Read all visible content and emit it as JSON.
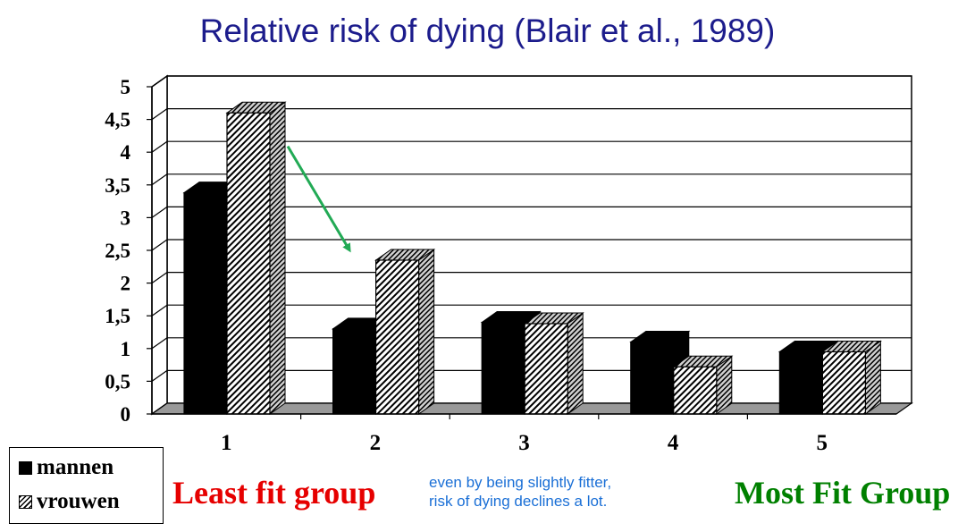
{
  "title": "Relative risk of dying  (Blair et al., 1989)",
  "chart_data": {
    "type": "bar",
    "categories": [
      "1",
      "2",
      "3",
      "4",
      "5"
    ],
    "series": [
      {
        "name": "mannen",
        "values": [
          3.38,
          1.3,
          1.4,
          1.1,
          0.95
        ],
        "color": "#000000",
        "pattern": "solid"
      },
      {
        "name": "vrouwen",
        "values": [
          4.6,
          2.35,
          1.38,
          0.72,
          0.95
        ],
        "color": "#000000",
        "pattern": "diagonal-hatch"
      }
    ],
    "yticks": [
      "0",
      "0,5",
      "1",
      "1,5",
      "2",
      "2,5",
      "3",
      "3,5",
      "4",
      "4,5",
      "5"
    ],
    "ylim": [
      0,
      5
    ],
    "grid": true,
    "legend_position": "bottom-left",
    "arrow": {
      "from_category": "1",
      "to_category": "2",
      "color": "#22aa55"
    }
  },
  "legend": {
    "men_label": "mannen",
    "women_label": "vrouwen"
  },
  "annotations": {
    "least_fit": "Least fit group",
    "most_fit": "Most Fit Group",
    "note_line1": "even by being slightly fitter,",
    "note_line2": "risk of dying declines a lot."
  }
}
